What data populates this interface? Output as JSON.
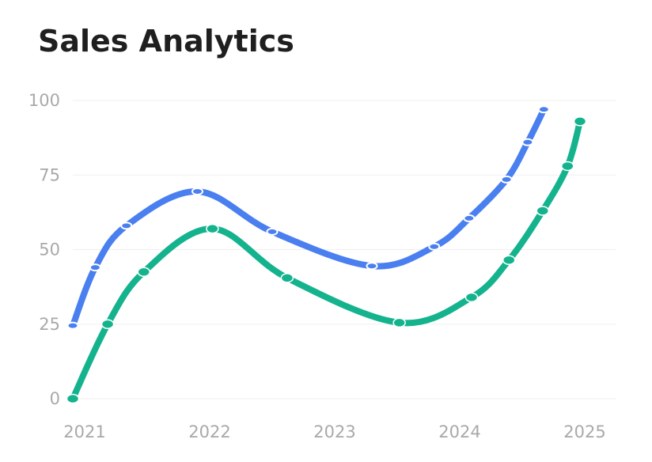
{
  "title": "Sales Analytics",
  "chart_data": {
    "type": "line",
    "title": "Sales Analytics",
    "xlabel": "",
    "ylabel": "",
    "x_ticks": [
      "2021",
      "2022",
      "2023",
      "2024",
      "2025"
    ],
    "y_ticks": [
      0,
      25,
      50,
      75,
      100
    ],
    "ylim": [
      0,
      100
    ],
    "xlim": [
      2021,
      2025.2
    ],
    "grid": true,
    "series": [
      {
        "color": "#4a7ff0",
        "points": [
          [
            2021.0,
            24.5
          ],
          [
            2021.18,
            44
          ],
          [
            2021.43,
            58
          ],
          [
            2022.0,
            69.5
          ],
          [
            2022.6,
            56
          ],
          [
            2023.4,
            44.5
          ],
          [
            2023.9,
            51
          ],
          [
            2024.18,
            60.5
          ],
          [
            2024.48,
            73.5
          ],
          [
            2024.65,
            86
          ],
          [
            2024.78,
            97
          ]
        ]
      },
      {
        "color": "#14b38e",
        "points": [
          [
            2021.0,
            0
          ],
          [
            2021.28,
            25
          ],
          [
            2021.57,
            42.5
          ],
          [
            2022.12,
            57
          ],
          [
            2022.72,
            40.5
          ],
          [
            2023.62,
            25.5
          ],
          [
            2024.2,
            34
          ],
          [
            2024.5,
            46.5
          ],
          [
            2024.77,
            63
          ],
          [
            2024.97,
            78
          ],
          [
            2025.07,
            93
          ]
        ]
      }
    ]
  }
}
